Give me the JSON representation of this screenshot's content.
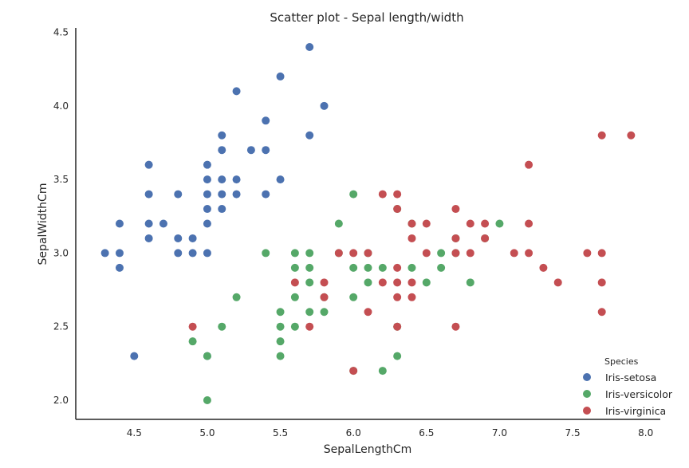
{
  "chart_data": {
    "type": "scatter",
    "title": "Scatter plot - Sepal length/width",
    "xlabel": "SepalLengthCm",
    "ylabel": "SepalWidthCm",
    "xlim": [
      4.1,
      8.1
    ],
    "ylim": [
      1.87,
      4.53
    ],
    "xticks": [
      "4.5",
      "5.0",
      "5.5",
      "6.0",
      "6.5",
      "7.0",
      "7.5",
      "8.0"
    ],
    "yticks": [
      "2.0",
      "2.5",
      "3.0",
      "3.5",
      "4.0",
      "4.5"
    ],
    "grid": false,
    "legend": {
      "title": "Species",
      "placement": "bottom-right"
    },
    "series": [
      {
        "name": "Iris-setosa",
        "color": "#4c72b0",
        "points": [
          [
            4.3,
            3.0
          ],
          [
            4.4,
            3.2
          ],
          [
            4.4,
            3.0
          ],
          [
            4.4,
            2.9
          ],
          [
            4.5,
            2.3
          ],
          [
            4.6,
            3.6
          ],
          [
            4.6,
            3.4
          ],
          [
            4.6,
            3.2
          ],
          [
            4.6,
            3.1
          ],
          [
            4.7,
            3.2
          ],
          [
            4.8,
            3.4
          ],
          [
            4.8,
            3.1
          ],
          [
            4.8,
            3.0
          ],
          [
            4.9,
            3.1
          ],
          [
            4.9,
            3.0
          ],
          [
            5.0,
            3.6
          ],
          [
            5.0,
            3.5
          ],
          [
            5.0,
            3.4
          ],
          [
            5.0,
            3.3
          ],
          [
            5.0,
            3.2
          ],
          [
            5.0,
            3.0
          ],
          [
            5.0,
            2.3
          ],
          [
            5.1,
            3.8
          ],
          [
            5.1,
            3.7
          ],
          [
            5.1,
            3.5
          ],
          [
            5.1,
            3.4
          ],
          [
            5.1,
            3.3
          ],
          [
            5.2,
            4.1
          ],
          [
            5.2,
            3.5
          ],
          [
            5.2,
            3.4
          ],
          [
            5.3,
            3.7
          ],
          [
            5.4,
            3.9
          ],
          [
            5.4,
            3.7
          ],
          [
            5.4,
            3.4
          ],
          [
            5.5,
            4.2
          ],
          [
            5.5,
            3.5
          ],
          [
            5.7,
            4.4
          ],
          [
            5.7,
            3.8
          ],
          [
            5.8,
            4.0
          ]
        ]
      },
      {
        "name": "Iris-versicolor",
        "color": "#55a868",
        "points": [
          [
            4.9,
            2.4
          ],
          [
            5.0,
            2.3
          ],
          [
            5.0,
            2.0
          ],
          [
            5.1,
            2.5
          ],
          [
            5.2,
            2.7
          ],
          [
            5.4,
            3.0
          ],
          [
            5.5,
            2.6
          ],
          [
            5.5,
            2.5
          ],
          [
            5.5,
            2.4
          ],
          [
            5.5,
            2.3
          ],
          [
            5.6,
            3.0
          ],
          [
            5.6,
            2.9
          ],
          [
            5.6,
            2.7
          ],
          [
            5.6,
            2.5
          ],
          [
            5.7,
            3.0
          ],
          [
            5.7,
            2.9
          ],
          [
            5.7,
            2.8
          ],
          [
            5.7,
            2.6
          ],
          [
            5.8,
            2.7
          ],
          [
            5.8,
            2.6
          ],
          [
            5.9,
            3.2
          ],
          [
            5.9,
            3.0
          ],
          [
            6.0,
            3.4
          ],
          [
            6.0,
            2.9
          ],
          [
            6.0,
            2.7
          ],
          [
            6.0,
            2.2
          ],
          [
            6.1,
            3.0
          ],
          [
            6.1,
            2.9
          ],
          [
            6.1,
            2.8
          ],
          [
            6.2,
            2.9
          ],
          [
            6.2,
            2.2
          ],
          [
            6.3,
            3.3
          ],
          [
            6.3,
            2.5
          ],
          [
            6.3,
            2.3
          ],
          [
            6.4,
            3.2
          ],
          [
            6.4,
            2.9
          ],
          [
            6.5,
            2.8
          ],
          [
            6.6,
            3.0
          ],
          [
            6.6,
            2.9
          ],
          [
            6.7,
            3.1
          ],
          [
            6.7,
            3.0
          ],
          [
            6.8,
            2.8
          ],
          [
            6.9,
            3.1
          ],
          [
            7.0,
            3.2
          ]
        ]
      },
      {
        "name": "Iris-virginica",
        "color": "#c44e52",
        "points": [
          [
            4.9,
            2.5
          ],
          [
            5.6,
            2.8
          ],
          [
            5.7,
            2.5
          ],
          [
            5.8,
            2.8
          ],
          [
            5.8,
            2.7
          ],
          [
            5.9,
            3.0
          ],
          [
            6.0,
            3.0
          ],
          [
            6.0,
            2.2
          ],
          [
            6.1,
            3.0
          ],
          [
            6.1,
            2.6
          ],
          [
            6.2,
            3.4
          ],
          [
            6.2,
            2.8
          ],
          [
            6.3,
            3.4
          ],
          [
            6.3,
            3.3
          ],
          [
            6.3,
            2.9
          ],
          [
            6.3,
            2.8
          ],
          [
            6.3,
            2.7
          ],
          [
            6.3,
            2.5
          ],
          [
            6.4,
            3.2
          ],
          [
            6.4,
            3.1
          ],
          [
            6.4,
            2.8
          ],
          [
            6.4,
            2.7
          ],
          [
            6.5,
            3.2
          ],
          [
            6.5,
            3.0
          ],
          [
            6.7,
            3.3
          ],
          [
            6.7,
            3.1
          ],
          [
            6.7,
            3.0
          ],
          [
            6.7,
            2.5
          ],
          [
            6.8,
            3.2
          ],
          [
            6.8,
            3.0
          ],
          [
            6.9,
            3.2
          ],
          [
            6.9,
            3.1
          ],
          [
            7.1,
            3.0
          ],
          [
            7.2,
            3.6
          ],
          [
            7.2,
            3.2
          ],
          [
            7.2,
            3.0
          ],
          [
            7.3,
            2.9
          ],
          [
            7.4,
            2.8
          ],
          [
            7.6,
            3.0
          ],
          [
            7.7,
            3.8
          ],
          [
            7.7,
            3.0
          ],
          [
            7.7,
            2.8
          ],
          [
            7.7,
            2.6
          ],
          [
            7.9,
            3.8
          ]
        ]
      }
    ]
  }
}
